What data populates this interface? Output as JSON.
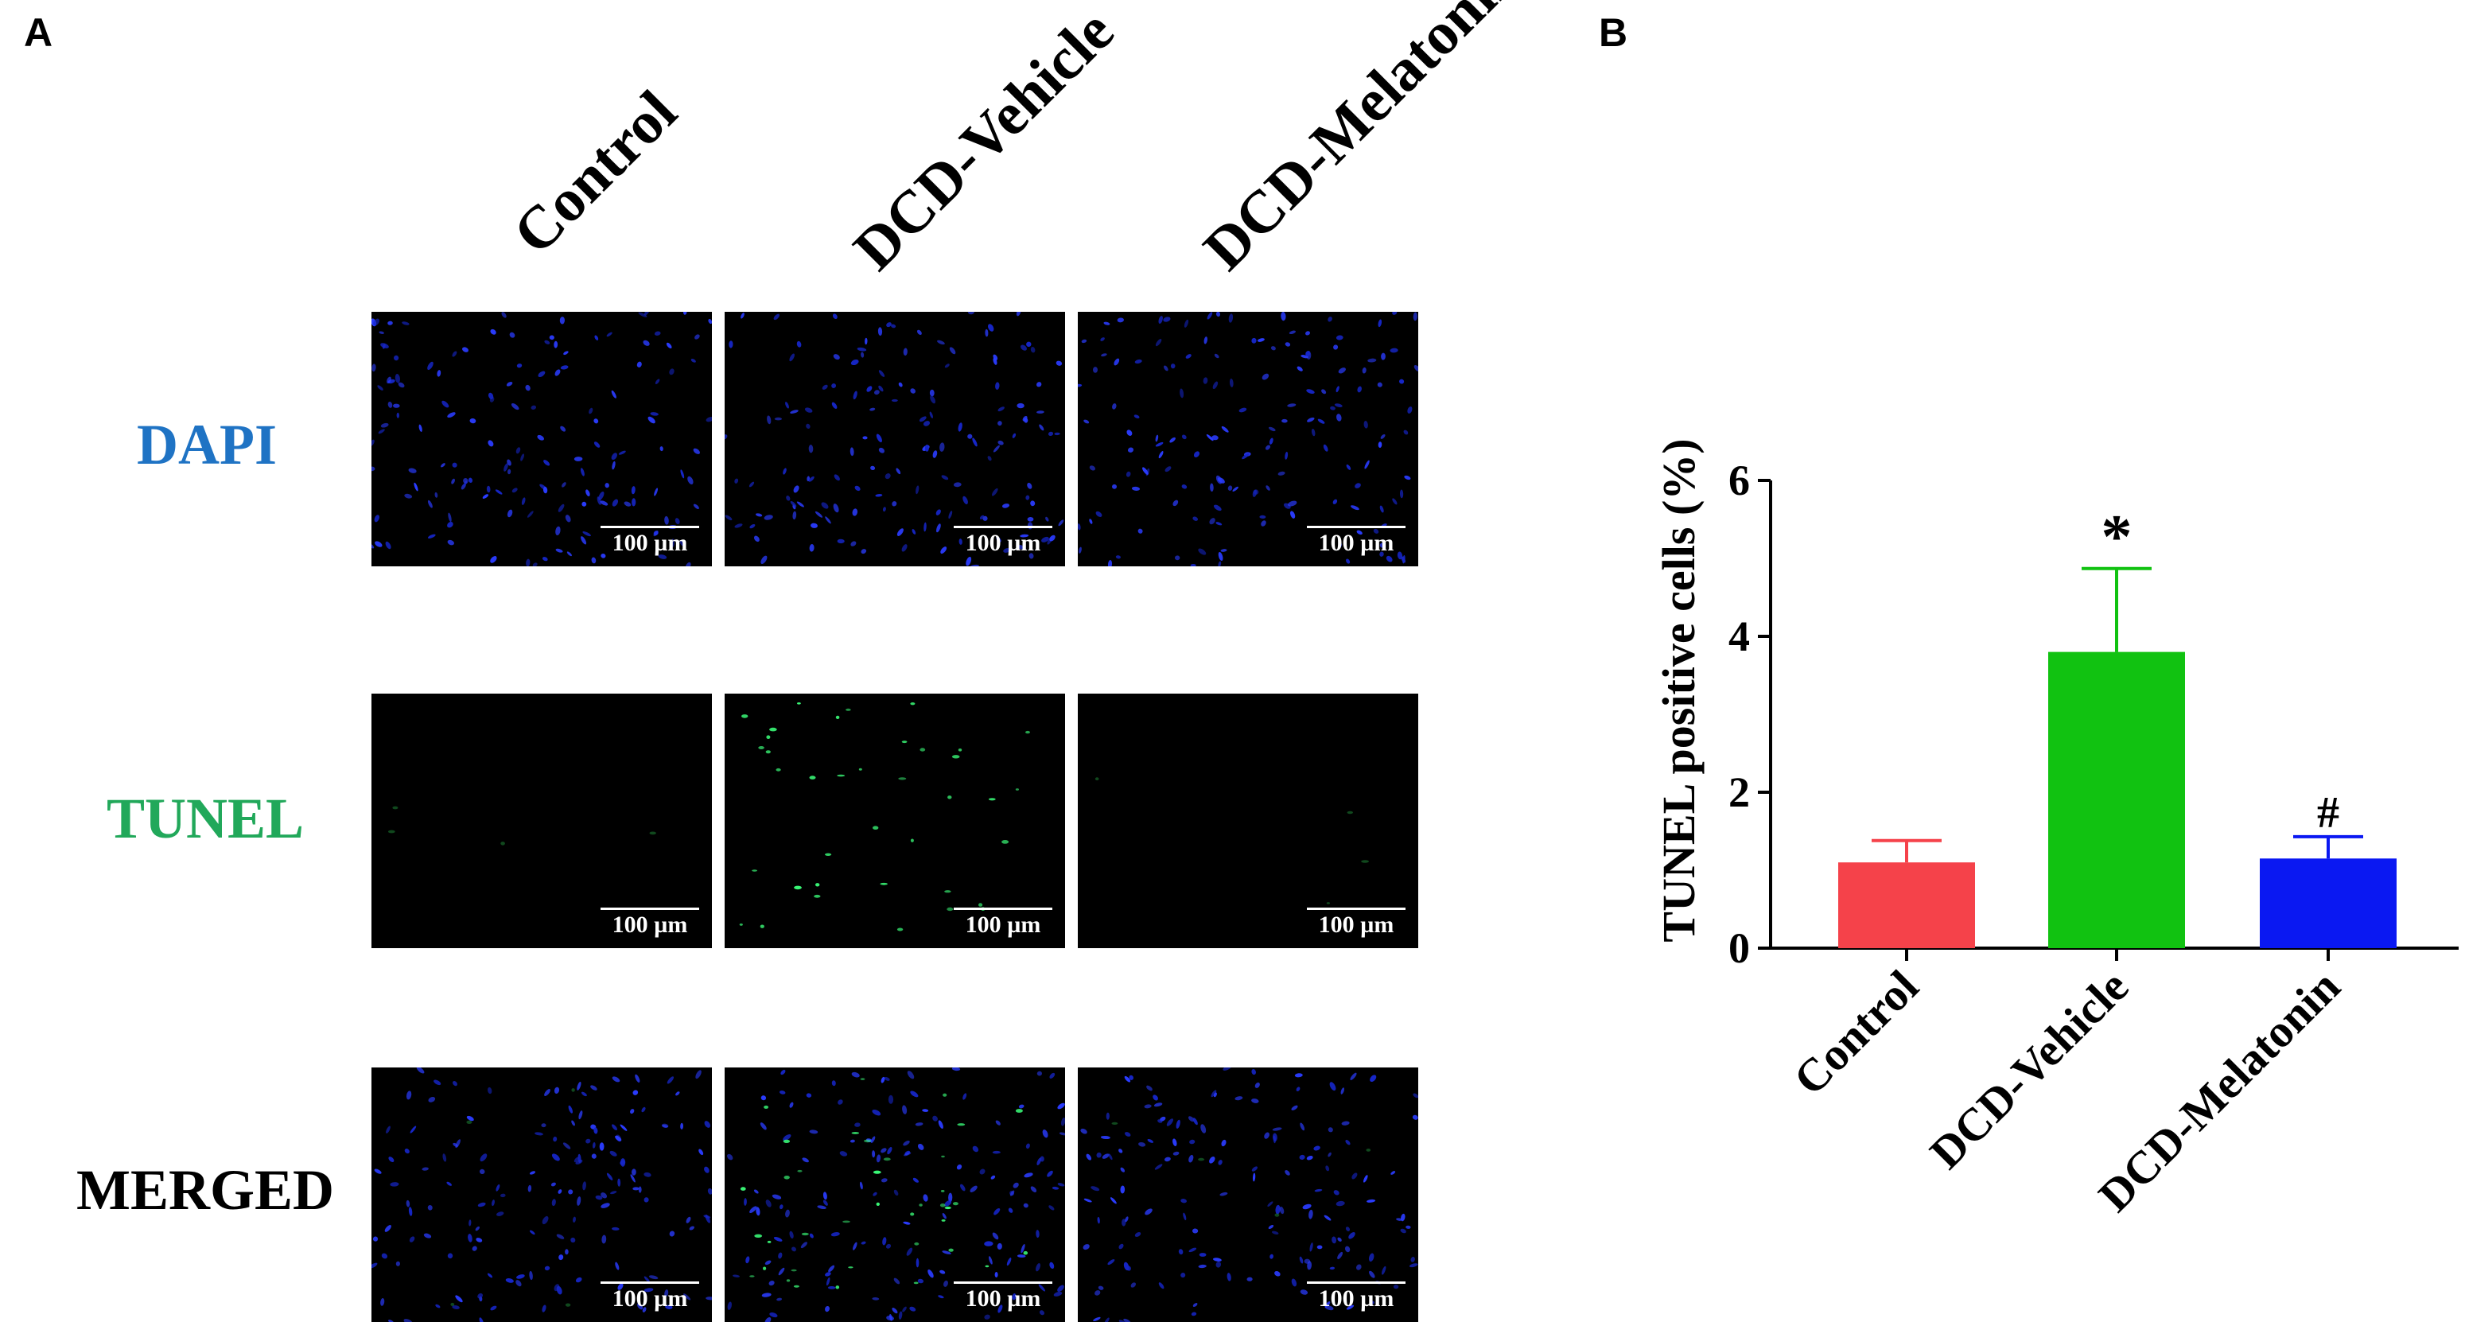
{
  "panel_a": {
    "letter": "A",
    "columns": [
      "Control",
      "DCD-Vehicle",
      "DCD-Melatonin"
    ],
    "rows": [
      {
        "label": "DAPI",
        "color": "#1f73c4",
        "stain": "dapi"
      },
      {
        "label": "TUNEL",
        "color": "#21a85a",
        "stain": "tunel"
      },
      {
        "label": "MERGED",
        "color": "#000000",
        "stain": "merged"
      }
    ],
    "scale_bar": "100 µm"
  },
  "panel_b": {
    "letter": "B"
  },
  "chart_data": {
    "type": "bar",
    "categories": [
      "Control",
      "DCD-Vehicle",
      "DCD-Melatonin"
    ],
    "values": [
      1.1,
      3.8,
      1.15
    ],
    "errors": [
      0.28,
      1.07,
      0.28
    ],
    "colors": [
      "#f5424a",
      "#11c211",
      "#0a18f2"
    ],
    "annotations": [
      "",
      "*",
      "#"
    ],
    "title": "",
    "xlabel": "",
    "ylabel": "TUNEL positive cells (%)",
    "ylim": [
      0,
      6
    ],
    "yticks": [
      0,
      2,
      4,
      6
    ],
    "grid": false
  }
}
